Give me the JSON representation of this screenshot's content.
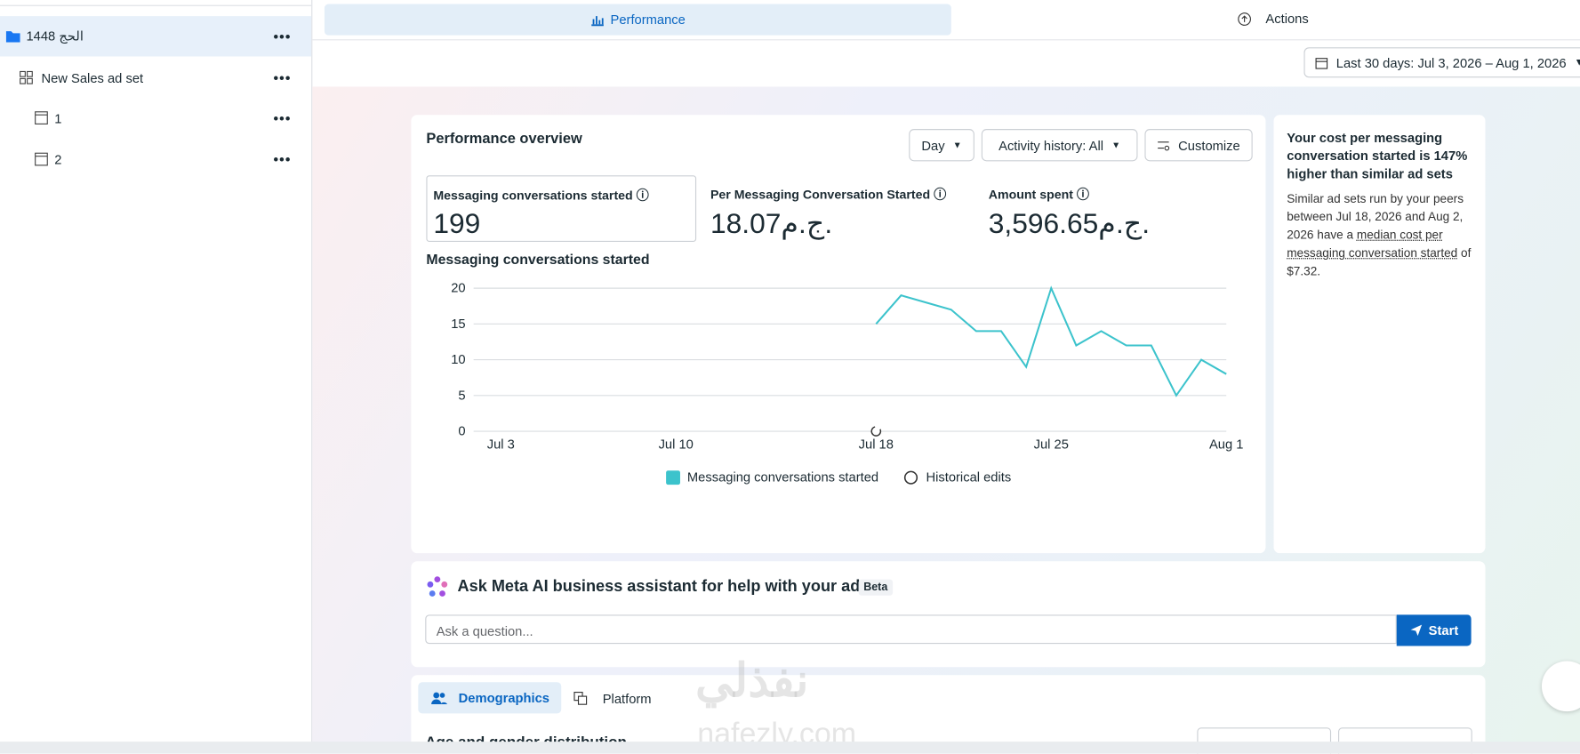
{
  "sidebar": {
    "items": [
      "الحج 1448",
      "New Sales ad set",
      "1",
      "2"
    ]
  },
  "tabs": {
    "performance": "Performance",
    "actions": "Actions"
  },
  "date_range": "Last 30 days: Jul 3, 2026 – Aug 1, 2026",
  "overview": {
    "title": "Performance overview",
    "day": "Day",
    "activity": "Activity history: All",
    "customize": "Customize",
    "metrics": [
      {
        "label": "Messaging conversations started",
        "value": "199"
      },
      {
        "label": "Per Messaging Conversation Started",
        "value": "18.07ج.م."
      },
      {
        "label": "Amount spent",
        "value": "3,596.65ج.م."
      }
    ]
  },
  "chart_data": {
    "type": "line",
    "title": "Messaging conversations started",
    "categories": [
      "Jul 3",
      null,
      null,
      null,
      null,
      null,
      null,
      "Jul 10",
      null,
      null,
      null,
      null,
      null,
      null,
      null,
      "Jul 18",
      null,
      null,
      null,
      null,
      null,
      null,
      "Jul 25",
      null,
      null,
      null,
      null,
      null,
      null,
      "Aug 1"
    ],
    "series": [
      {
        "name": "Messaging conversations started",
        "color": "#3cc3cc",
        "values": [
          null,
          null,
          null,
          null,
          null,
          null,
          null,
          null,
          null,
          null,
          null,
          null,
          null,
          null,
          null,
          15,
          19,
          18,
          17,
          14,
          14,
          9,
          20,
          12,
          14,
          12,
          12,
          5,
          10,
          8
        ]
      }
    ],
    "history_legend": "Historical edits",
    "ylim": [
      0,
      20
    ],
    "yticks": [
      0,
      5,
      10,
      15,
      20
    ],
    "grid": true
  },
  "insight": {
    "title": "Your cost per messaging conversation started is 147% higher than similar ad sets",
    "text_before": "Similar ad sets run by your peers between Jul 18, 2026 and Aug 2, 2026 have a ",
    "link": "median cost per messaging conversation started",
    "text_after": " of $7.32."
  },
  "assistant": {
    "title": "Ask Meta AI business assistant for help with your ads",
    "badge": "Beta",
    "placeholder": "Ask a question...",
    "button": "Start"
  },
  "breakdown": {
    "tabs": [
      "Demographics",
      "Platform"
    ],
    "heading": "Age and gender distribution"
  },
  "watermark": {
    "arabic": "نفذلي",
    "latin": "nafezly.com"
  }
}
